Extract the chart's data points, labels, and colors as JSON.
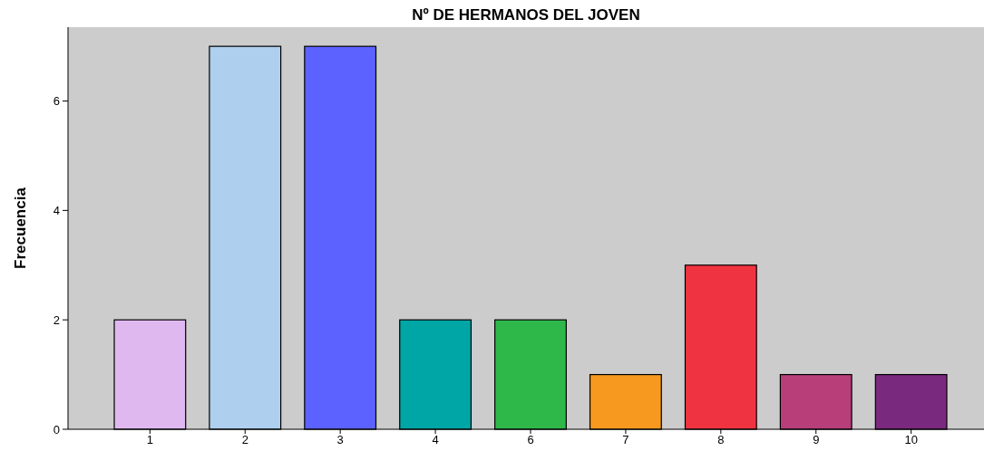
{
  "chart_data": {
    "type": "bar",
    "title": "Nº DE HERMANOS DEL JOVEN",
    "ylabel": "Frecuencia",
    "categories": [
      "1",
      "2",
      "3",
      "4",
      "6",
      "7",
      "8",
      "9",
      "10"
    ],
    "values": [
      2,
      7,
      7,
      2,
      2,
      1,
      3,
      1,
      1
    ],
    "colors": [
      "#dfb8f0",
      "#aecfee",
      "#5c62ff",
      "#00a6a6",
      "#2fb84a",
      "#f7991f",
      "#ef3340",
      "#b83e7a",
      "#7a2a7e"
    ],
    "ylim": [
      0,
      7.35
    ],
    "yticks": [
      0,
      2,
      4,
      6
    ]
  }
}
